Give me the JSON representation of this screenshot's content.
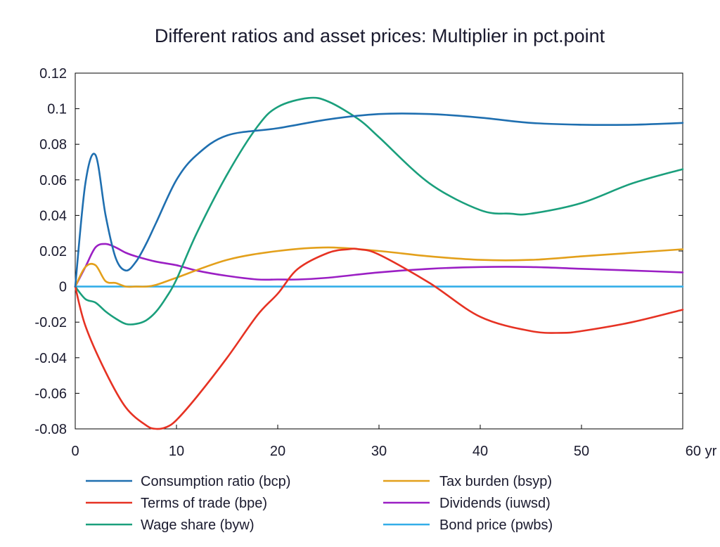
{
  "chart_data": {
    "type": "line",
    "title": "Different ratios and asset prices: Multiplier in pct.point",
    "xlabel": "",
    "ylabel": "",
    "x_unit_label": "yr",
    "xlim": [
      0,
      60
    ],
    "ylim": [
      -0.08,
      0.12
    ],
    "x_ticks": [
      0,
      10,
      20,
      30,
      40,
      50,
      60
    ],
    "x_tick_labels": [
      "0",
      "10",
      "20",
      "30",
      "40",
      "50",
      "60 yr"
    ],
    "y_ticks": [
      -0.08,
      -0.06,
      -0.04,
      -0.02,
      0,
      0.02,
      0.04,
      0.06,
      0.08,
      0.1,
      0.12
    ],
    "y_tick_labels": [
      "-0.08",
      "-0.06",
      "-0.04",
      "-0.02",
      "0",
      "0.02",
      "0.04",
      "0.06",
      "0.08",
      "0.1",
      "0.12"
    ],
    "grid": false,
    "zero_line": true,
    "legend_position": "bottom",
    "series": [
      {
        "name": "Consumption ratio (bcp)",
        "color": "#1f6fb0",
        "x": [
          0,
          1,
          2,
          3,
          4,
          5,
          6,
          7,
          8,
          10,
          12,
          15,
          20,
          25,
          30,
          35,
          40,
          45,
          50,
          55,
          60
        ],
        "y": [
          0,
          0.058,
          0.074,
          0.04,
          0.016,
          0.009,
          0.014,
          0.024,
          0.036,
          0.06,
          0.074,
          0.085,
          0.089,
          0.094,
          0.097,
          0.097,
          0.095,
          0.092,
          0.091,
          0.091,
          0.092
        ]
      },
      {
        "name": "Terms of trade (bpe)",
        "color": "#e63223",
        "x": [
          0,
          1,
          3,
          5,
          7,
          8,
          9,
          10,
          12,
          15,
          18,
          20,
          22,
          25,
          27,
          28,
          30,
          35,
          40,
          45,
          48,
          50,
          55,
          60
        ],
        "y": [
          0,
          -0.022,
          -0.048,
          -0.068,
          -0.078,
          -0.08,
          -0.079,
          -0.075,
          -0.062,
          -0.04,
          -0.016,
          -0.004,
          0.01,
          0.019,
          0.021,
          0.021,
          0.018,
          0.002,
          -0.017,
          -0.025,
          -0.026,
          -0.025,
          -0.02,
          -0.013
        ]
      },
      {
        "name": "Wage share (byw)",
        "color": "#1a9f7c",
        "x": [
          0,
          1,
          2,
          3,
          4,
          5,
          6,
          7,
          8,
          9,
          10,
          12,
          15,
          18,
          20,
          23,
          25,
          28,
          30,
          35,
          40,
          43,
          45,
          50,
          55,
          60
        ],
        "y": [
          0,
          -0.007,
          -0.009,
          -0.014,
          -0.018,
          -0.021,
          -0.021,
          -0.019,
          -0.014,
          -0.006,
          0.004,
          0.03,
          0.063,
          0.09,
          0.101,
          0.106,
          0.104,
          0.094,
          0.084,
          0.058,
          0.043,
          0.041,
          0.041,
          0.047,
          0.058,
          0.066
        ]
      },
      {
        "name": "Tax burden (bsyp)",
        "color": "#e3a01b",
        "x": [
          0,
          1,
          2,
          3,
          4,
          5,
          6,
          7,
          8,
          10,
          15,
          20,
          25,
          30,
          35,
          40,
          45,
          50,
          55,
          60
        ],
        "y": [
          0,
          0.011,
          0.012,
          0.003,
          0.002,
          0.0,
          0.0,
          0.0,
          0.001,
          0.005,
          0.015,
          0.02,
          0.022,
          0.02,
          0.017,
          0.015,
          0.015,
          0.017,
          0.019,
          0.021
        ]
      },
      {
        "name": "Dividends (iuwsd)",
        "color": "#9b1fc4",
        "x": [
          0,
          1,
          2,
          3,
          4,
          5,
          6,
          8,
          10,
          12,
          15,
          18,
          20,
          22,
          25,
          30,
          35,
          40,
          45,
          50,
          55,
          60
        ],
        "y": [
          0,
          0.011,
          0.022,
          0.024,
          0.022,
          0.019,
          0.017,
          0.014,
          0.012,
          0.009,
          0.006,
          0.004,
          0.004,
          0.004,
          0.005,
          0.008,
          0.01,
          0.011,
          0.011,
          0.01,
          0.009,
          0.008
        ]
      },
      {
        "name": "Bond price (pwbs)",
        "color": "#33aee8",
        "x": [
          0,
          60
        ],
        "y": [
          0,
          0
        ]
      }
    ]
  }
}
